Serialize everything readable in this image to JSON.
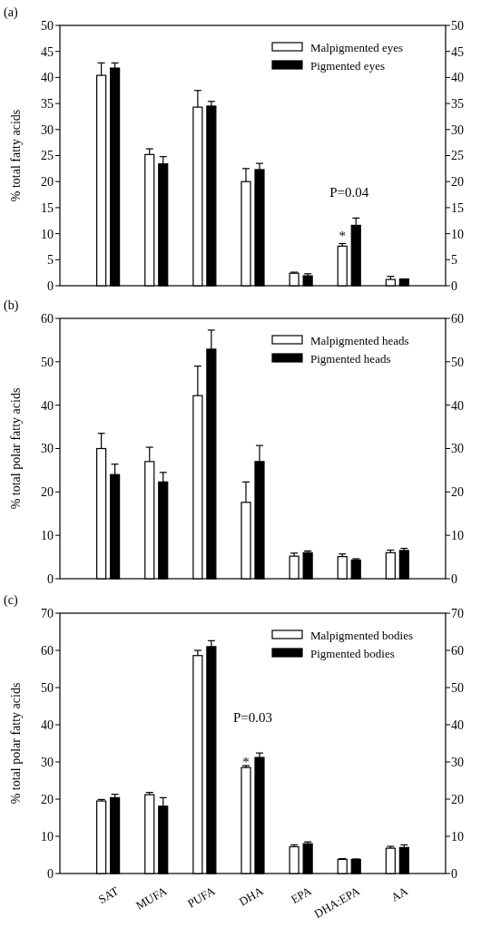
{
  "chart_data": [
    {
      "type": "bar",
      "title": "(a)",
      "ylabel": "% total fatty acids",
      "categories": [
        null,
        null,
        null,
        null,
        null,
        null,
        null
      ],
      "ylim": [
        0,
        50
      ],
      "yticks": [
        0,
        5,
        10,
        15,
        20,
        25,
        30,
        35,
        40,
        45,
        50
      ],
      "y2lim": [
        0,
        50
      ],
      "y2ticks": [
        0,
        5,
        10,
        15,
        20,
        25,
        30,
        35,
        40,
        45,
        50
      ],
      "legend": "top right",
      "grid": false,
      "series": [
        {
          "name": "Malpigmented eyes",
          "color": "#ffffff",
          "values": [
            40.4,
            25.2,
            34.3,
            20.0,
            2.4,
            7.6,
            1.2
          ],
          "errors": [
            [
              40.4,
              42.8
            ],
            [
              25.2,
              26.3
            ],
            [
              34.3,
              37.5
            ],
            [
              20.0,
              22.5
            ],
            [
              2.4,
              2.6
            ],
            [
              7.6,
              8.1
            ],
            [
              1.2,
              1.8
            ]
          ]
        },
        {
          "name": "Pigmented eyes",
          "color": "#000000",
          "values": [
            41.8,
            23.4,
            34.5,
            22.3,
            1.9,
            11.6,
            1.3
          ],
          "errors": [
            [
              41.8,
              42.8
            ],
            [
              23.4,
              24.8
            ],
            [
              34.5,
              35.4
            ],
            [
              22.3,
              23.5
            ],
            [
              1.9,
              2.3
            ],
            [
              11.6,
              13.0
            ],
            null
          ]
        }
      ],
      "annotations": [
        "*",
        "P=0.04"
      ]
    },
    {
      "type": "bar",
      "title": "(b)",
      "ylabel": "% total polar fatty acids",
      "categories": [
        null,
        null,
        null,
        null,
        null,
        null,
        null
      ],
      "ylim": [
        0,
        60
      ],
      "yticks": [
        0,
        10,
        20,
        30,
        40,
        50,
        60
      ],
      "y2lim": [
        0,
        60
      ],
      "y2ticks": [
        0,
        10,
        20,
        30,
        40,
        50,
        60
      ],
      "legend": "top right",
      "grid": false,
      "series": [
        {
          "name": "Malpigmented heads",
          "color": "#ffffff",
          "values": [
            30.0,
            27.0,
            42.2,
            17.6,
            5.2,
            5.1,
            6.0
          ],
          "errors": [
            [
              30.0,
              33.5
            ],
            [
              27.0,
              30.3
            ],
            [
              42.2,
              49.0
            ],
            [
              17.6,
              22.3
            ],
            [
              5.2,
              5.9
            ],
            [
              5.1,
              5.7
            ],
            [
              6.0,
              6.6
            ]
          ]
        },
        {
          "name": "Pigmented heads",
          "color": "#000000",
          "values": [
            24.0,
            22.3,
            52.9,
            27.0,
            6.0,
            4.3,
            6.5
          ],
          "errors": [
            [
              24.0,
              26.4
            ],
            [
              22.3,
              24.5
            ],
            [
              52.9,
              57.3
            ],
            [
              27.0,
              30.7
            ],
            [
              6.0,
              6.4
            ],
            [
              4.3,
              4.6
            ],
            [
              6.5,
              7.0
            ]
          ]
        }
      ]
    },
    {
      "type": "bar",
      "title": "(c)",
      "ylabel": "% total polar fatty acids",
      "categories": [
        "SAT",
        "MUFA",
        "PUFA",
        "DHA",
        "EPA",
        "DHA:EPA",
        "AA"
      ],
      "ylim": [
        0,
        70
      ],
      "yticks": [
        0,
        10,
        20,
        30,
        40,
        50,
        60,
        70
      ],
      "y2lim": [
        0,
        70
      ],
      "y2ticks": [
        0,
        10,
        20,
        30,
        40,
        50,
        60,
        70
      ],
      "legend": "top right",
      "grid": false,
      "series": [
        {
          "name": "Malpigmented bodies",
          "color": "#ffffff",
          "values": [
            19.5,
            21.2,
            58.6,
            28.5,
            7.2,
            3.8,
            6.8
          ],
          "errors": [
            [
              19.5,
              19.9
            ],
            [
              21.2,
              21.8
            ],
            [
              58.6,
              60.0
            ],
            [
              28.5,
              29.0
            ],
            [
              7.2,
              7.7
            ],
            [
              3.8,
              4.0
            ],
            [
              6.8,
              7.3
            ]
          ]
        },
        {
          "name": "Pigmented bodies",
          "color": "#000000",
          "values": [
            20.4,
            18.1,
            61.0,
            31.2,
            8.0,
            3.8,
            7.0
          ],
          "errors": [
            [
              20.4,
              21.3
            ],
            [
              18.1,
              20.4
            ],
            [
              61.0,
              62.6
            ],
            [
              31.2,
              32.4
            ],
            [
              8.0,
              8.5
            ],
            [
              3.8,
              3.9
            ],
            [
              7.0,
              7.7
            ]
          ]
        }
      ],
      "annotations": [
        "*",
        "P=0.03"
      ]
    }
  ]
}
